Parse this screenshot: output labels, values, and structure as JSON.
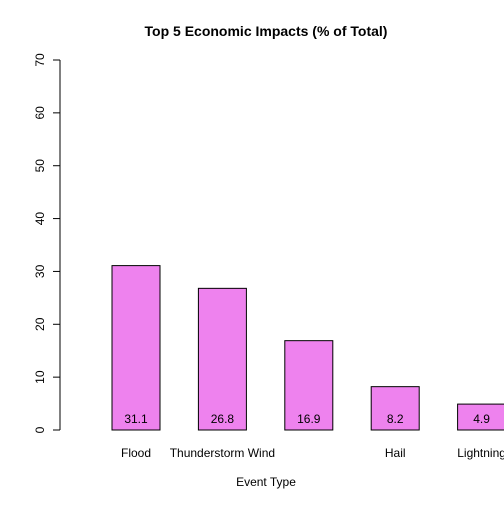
{
  "chart_data": {
    "type": "bar",
    "title": "Top 5 Economic Impacts (% of Total)",
    "xlabel": "Event Type",
    "ylabel": "",
    "categories": [
      "Flood",
      "Thunderstorm Wind",
      "",
      "Hail",
      "Lightning"
    ],
    "values": [
      31.1,
      26.8,
      16.9,
      8.2,
      4.9
    ],
    "value_labels": [
      "31.1",
      "26.8",
      "16.9",
      "8.2",
      "4.9"
    ],
    "ylim": [
      0,
      70
    ],
    "yticks": [
      0,
      10,
      20,
      30,
      40,
      50,
      60,
      70
    ],
    "grid": false,
    "bar_color": "#EE82EE",
    "bar_border_color": "#000000"
  }
}
